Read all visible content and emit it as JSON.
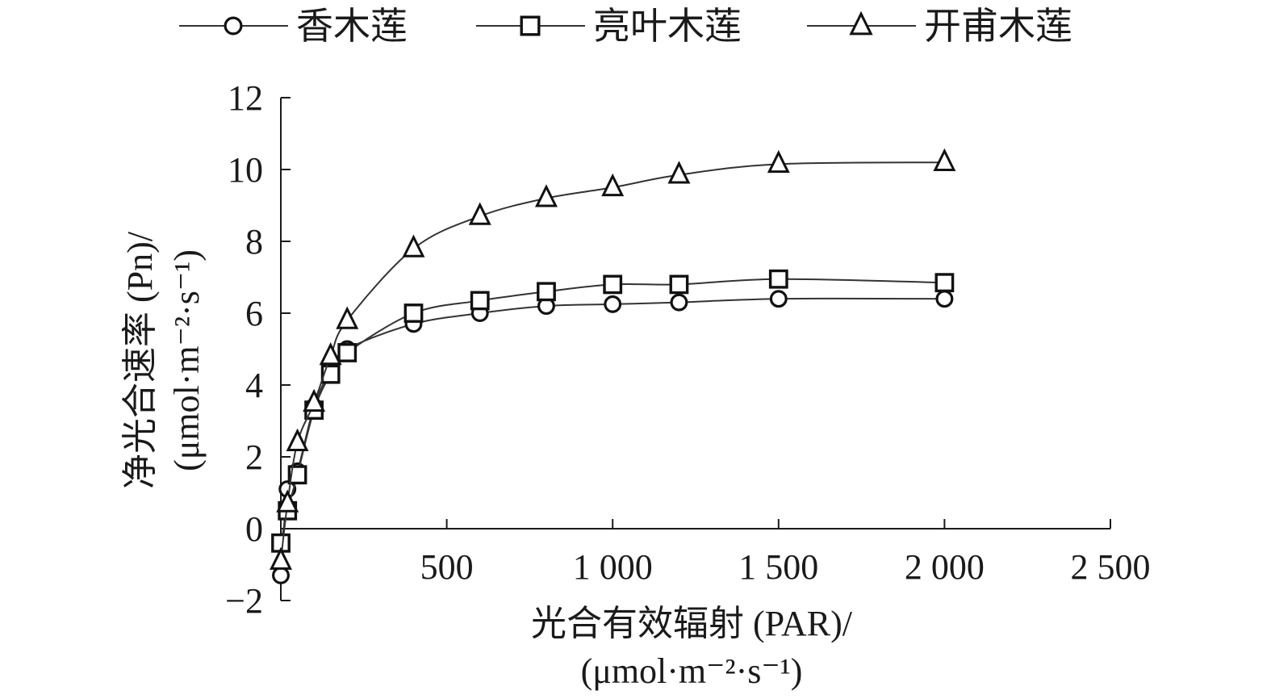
{
  "chart_data": {
    "type": "line",
    "xlabel_line1": "光合有效辐射 (PAR)/",
    "xlabel_line2": "(μmol·m⁻²·s⁻¹)",
    "ylabel_line1": "净光合速率 (Pn)/",
    "ylabel_line2": "(μmol·m⁻²·s⁻¹)",
    "xlim": [
      0,
      2500
    ],
    "ylim": [
      -2,
      12
    ],
    "x_ticks": [
      500,
      1000,
      1500,
      2000,
      2500
    ],
    "x_tick_labels": [
      "500",
      "1 000",
      "1 500",
      "2 000",
      "2 500"
    ],
    "y_ticks": [
      -2,
      0,
      2,
      4,
      6,
      8,
      10,
      12
    ],
    "y_tick_labels": [
      "−2",
      "0",
      "2",
      "4",
      "6",
      "8",
      "10",
      "12"
    ],
    "grid": false,
    "legend_position": "top",
    "series": [
      {
        "name": "香木莲",
        "marker": "circle",
        "x": [
          0,
          20,
          50,
          100,
          150,
          200,
          400,
          600,
          800,
          1000,
          1200,
          1500,
          2000
        ],
        "y": [
          -1.3,
          1.1,
          1.6,
          3.4,
          4.4,
          5.0,
          5.7,
          6.0,
          6.2,
          6.25,
          6.3,
          6.4,
          6.4
        ]
      },
      {
        "name": "亮叶木莲",
        "marker": "square",
        "x": [
          0,
          20,
          50,
          100,
          150,
          200,
          400,
          600,
          800,
          1000,
          1200,
          1500,
          2000
        ],
        "y": [
          -0.4,
          0.5,
          1.5,
          3.3,
          4.3,
          4.9,
          6.0,
          6.35,
          6.6,
          6.8,
          6.8,
          6.95,
          6.85
        ]
      },
      {
        "name": "开甫木莲",
        "marker": "triangle",
        "x": [
          0,
          20,
          50,
          100,
          150,
          200,
          400,
          600,
          800,
          1000,
          1200,
          1500,
          2000
        ],
        "y": [
          -0.9,
          0.7,
          2.4,
          3.5,
          4.8,
          5.8,
          7.8,
          8.7,
          9.2,
          9.5,
          9.85,
          10.15,
          10.2
        ]
      }
    ]
  }
}
